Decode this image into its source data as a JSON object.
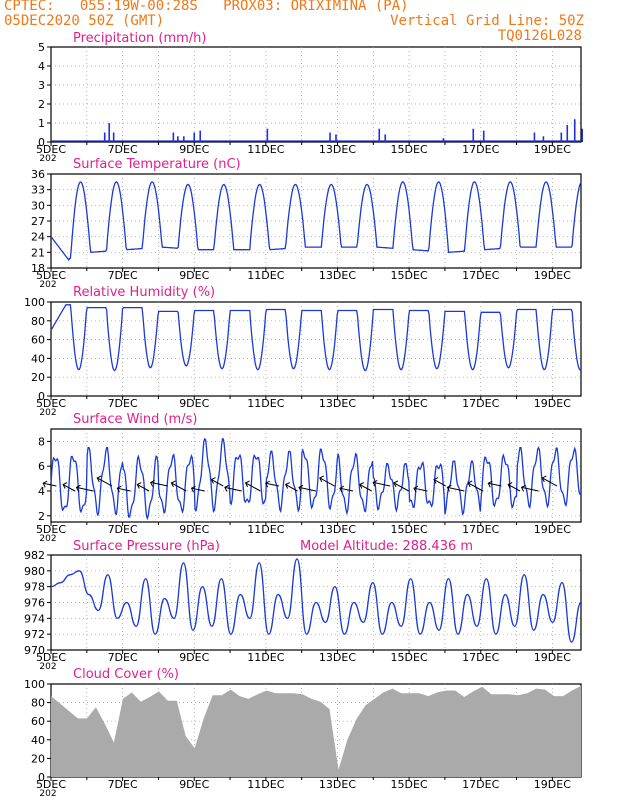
{
  "header": {
    "line1_left": "CPTEC:   055:19W-00:28S   PROX03: ORIXIMINA (PA)",
    "line2_left": "05DEC2020 50Z (GMT)",
    "line2_right": "Vertical Grid Line: 50Z",
    "line3_right": "TQ0126L028"
  },
  "x_tick_labels": [
    "5DEC",
    "7DEC",
    "9DEC",
    "11DEC",
    "13DEC",
    "15DEC",
    "17DEC",
    "19DEC"
  ],
  "x_stub_label": "202",
  "colors": {
    "title": "#e0208a",
    "header": "#f07818",
    "series": "#1a3ad8",
    "precip": "#2030e0",
    "cloud": "#aaaaaa",
    "arrow": "#000000",
    "grid": "#999999"
  },
  "chart_data": [
    {
      "type": "bar",
      "title": "Precipitation (mm/h)",
      "ylim": [
        0,
        5
      ],
      "yticks": [
        "0",
        "1",
        "2",
        "3",
        "4",
        "5"
      ],
      "x": [
        "6DEC 12Z",
        "6DEC 15Z",
        "6DEC 18Z",
        "8DEC 10Z",
        "8DEC 13Z",
        "8DEC 17Z",
        "9DEC 00Z",
        "9DEC 04Z",
        "11DEC 01Z",
        "12DEC 19Z",
        "12DEC 23Z",
        "14DEC 04Z",
        "14DEC 08Z",
        "15DEC 23Z",
        "16DEC 19Z",
        "17DEC 02Z",
        "18DEC 12Z",
        "18DEC 18Z",
        "19DEC 06Z",
        "19DEC 10Z",
        "19DEC 15Z",
        "19DEC 20Z"
      ],
      "values": [
        0.5,
        1.0,
        0.5,
        0.5,
        0.3,
        0.3,
        0.5,
        0.6,
        0.7,
        0.5,
        0.4,
        0.7,
        0.4,
        0.2,
        0.7,
        0.6,
        0.5,
        0.3,
        0.5,
        0.9,
        1.2,
        0.7
      ]
    },
    {
      "type": "line",
      "title": "Surface Temperature (nC)",
      "ylim": [
        18,
        36
      ],
      "yticks": [
        "18",
        "21",
        "24",
        "27",
        "30",
        "33",
        "36"
      ],
      "daily_max": [
        34.5,
        34.5,
        34.5,
        34,
        34,
        34,
        34,
        34,
        34,
        34.5,
        34.5,
        34.5,
        34.5,
        34.5
      ],
      "daily_min": [
        19,
        21,
        21.5,
        22,
        21.5,
        21.5,
        21.5,
        22,
        22,
        22,
        21.5,
        21,
        21.5,
        22
      ],
      "values": [
        24,
        22,
        20,
        19
      ]
    },
    {
      "type": "line",
      "title": "Relative Humidity (%)",
      "ylim": [
        0,
        100
      ],
      "yticks": [
        "0",
        "20",
        "40",
        "60",
        "80",
        "100"
      ],
      "daily_max": [
        97,
        94,
        94,
        90,
        91,
        91,
        92,
        91,
        91,
        92,
        91,
        90,
        89,
        92
      ],
      "daily_min": [
        28,
        27,
        30,
        32,
        29,
        28,
        29,
        28,
        27,
        28,
        29,
        28,
        30,
        28
      ],
      "values": [
        70,
        85,
        97
      ]
    },
    {
      "type": "line",
      "title": "Surface Wind (m/s)",
      "ylim": [
        1.5,
        9
      ],
      "yticks": [
        "2",
        "4",
        "6",
        "8"
      ],
      "daily_max": [
        7.2,
        7.5,
        6.8,
        7.0,
        8.2,
        7.3,
        7.2,
        7.5,
        7.0,
        6.2,
        6.5,
        6.4,
        7.0,
        7.5
      ],
      "daily_min": [
        2.0,
        2.2,
        1.8,
        2.2,
        2.5,
        2.6,
        2.6,
        2.5,
        2.3,
        2.7,
        2.5,
        2.4,
        2.6,
        2.8
      ],
      "wind_arrows_count": 28
    },
    {
      "type": "line",
      "title": "Surface Pressure (hPa)",
      "annotation": "Model Altitude: 288.436  m",
      "ylim": [
        970,
        982
      ],
      "yticks": [
        "970",
        "972",
        "974",
        "976",
        "978",
        "980",
        "982"
      ],
      "values": [
        978,
        978.5,
        979.5,
        980,
        977,
        975,
        979.5,
        974,
        976,
        973,
        979,
        972,
        976.5,
        974,
        981,
        972.5,
        978,
        973,
        979,
        972,
        977,
        974,
        981,
        972,
        977,
        974,
        981.5,
        972,
        976,
        973.5,
        978,
        972,
        976,
        973.5,
        978.5,
        972,
        976,
        973,
        979,
        972,
        976,
        972.5,
        979,
        972,
        977,
        973,
        979,
        972,
        977,
        973,
        979.5,
        972.5,
        977,
        973.5,
        978.5,
        971,
        976
      ]
    },
    {
      "type": "area",
      "title": "Cloud Cover (%)",
      "ylim": [
        0,
        100
      ],
      "yticks": [
        "0",
        "20",
        "40",
        "60",
        "80",
        "100"
      ],
      "values": [
        90,
        80,
        70,
        60,
        65,
        75,
        55,
        40,
        85,
        90,
        78,
        88,
        92,
        80,
        85,
        45,
        30,
        60,
        90,
        88,
        92,
        90,
        85,
        88,
        90,
        92,
        90,
        88,
        92,
        85,
        80,
        70,
        10,
        40,
        60,
        80,
        85,
        90,
        92,
        92,
        90,
        88,
        90,
        92,
        92,
        90,
        88,
        92,
        95,
        92,
        90,
        88,
        85,
        92,
        95,
        92,
        90,
        88,
        92,
        95
      ]
    }
  ]
}
